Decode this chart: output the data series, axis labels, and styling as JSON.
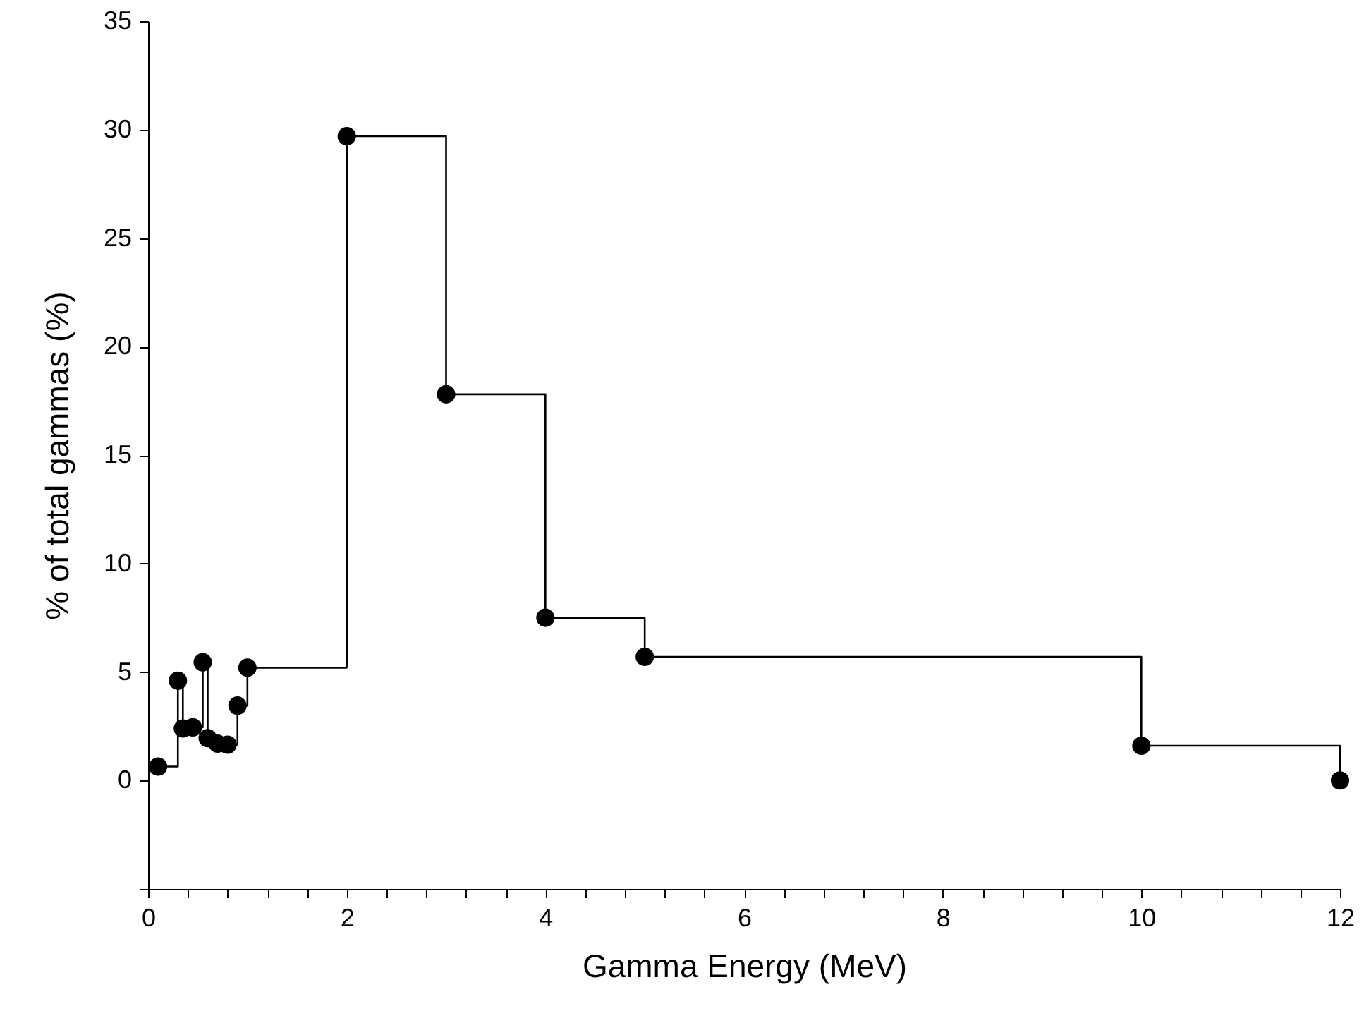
{
  "chart_data": {
    "type": "step",
    "xlabel": "Gamma Energy (MeV)",
    "ylabel": "% of total gammas (%)",
    "x": [
      0.1,
      0.3,
      0.35,
      0.45,
      0.55,
      0.6,
      0.7,
      0.8,
      0.9,
      1,
      2,
      3,
      4,
      5,
      10,
      12
    ],
    "series": [
      {
        "color": "#000000",
        "values": [
          0.64,
          4.6,
          2.4,
          2.45,
          5.45,
          1.95,
          1.7,
          1.65,
          3.45,
          5.2,
          29.7,
          17.8,
          7.5,
          5.7,
          1.6,
          0
        ]
      }
    ],
    "xlim": [
      0,
      12
    ],
    "xticks": [
      0,
      {
        "value": 0.4,
        "label": null
      },
      {
        "value": 0.8,
        "label": null
      },
      {
        "value": 1.2,
        "label": null
      },
      {
        "value": 1.6,
        "label": null
      },
      2,
      {
        "value": 2.4,
        "label": null
      },
      {
        "value": 2.8,
        "label": null
      },
      {
        "value": 3.2,
        "label": null
      },
      {
        "value": 3.6,
        "label": null
      },
      4,
      {
        "value": 4.4,
        "label": null
      },
      {
        "value": 4.8,
        "label": null
      },
      {
        "value": 5.2,
        "label": null
      },
      {
        "value": 5.6,
        "label": null
      },
      6,
      {
        "value": 6.4,
        "label": null
      },
      {
        "value": 6.8,
        "label": null
      },
      {
        "value": 7.2,
        "label": null
      },
      {
        "value": 7.6,
        "label": null
      },
      8,
      {
        "value": 8.4,
        "label": null
      },
      {
        "value": 8.8,
        "label": null
      },
      {
        "value": 9.2,
        "label": null
      },
      {
        "value": 9.6,
        "label": null
      },
      10,
      {
        "value": 10.4,
        "label": null
      },
      {
        "value": 10.8,
        "label": null
      },
      {
        "value": 11.2,
        "label": null
      },
      {
        "value": 11.6,
        "label": null
      },
      12
    ],
    "ylim": [
      -5,
      35
    ],
    "yticks": [
      {
        "value": -5,
        "label": null
      },
      0,
      5,
      10,
      15,
      20,
      25,
      30,
      35
    ],
    "marker": "circle",
    "line_style": "solid",
    "grid": false
  }
}
